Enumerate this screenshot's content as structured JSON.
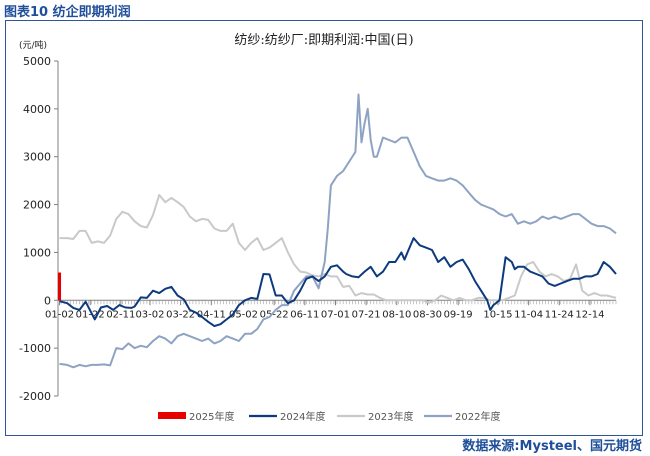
{
  "figure_label": "图表10 纺企即期利润",
  "source": "数据来源:Mysteel、国元期货",
  "colors": {
    "frame": "#2f5597",
    "header_text": "#1f4e9a",
    "s2025": "#e60000",
    "s2024": "#0d3a7e",
    "s2023": "#c9c9c9",
    "s2022": "#8ea3c3",
    "axis": "#808080",
    "text": "#222222"
  },
  "chart_data": {
    "type": "line",
    "title": "纺纱:纺纱厂:即期利润:中国(日)",
    "unit": "(元/吨)",
    "ylim": [
      -2000,
      5000
    ],
    "yticks": [
      -2000,
      -1000,
      0,
      1000,
      2000,
      3000,
      4000,
      5000
    ],
    "xlim": [
      0,
      364
    ],
    "x_ticks": [
      {
        "label": "01-02",
        "day": 1
      },
      {
        "label": "01-22",
        "day": 21
      },
      {
        "label": "02-11",
        "day": 41
      },
      {
        "label": "03-02",
        "day": 60
      },
      {
        "label": "03-22",
        "day": 80
      },
      {
        "label": "04-11",
        "day": 100
      },
      {
        "label": "05-02",
        "day": 121
      },
      {
        "label": "05-22",
        "day": 141
      },
      {
        "label": "06-11",
        "day": 161
      },
      {
        "label": "07-01",
        "day": 181
      },
      {
        "label": "07-21",
        "day": 201
      },
      {
        "label": "08-10",
        "day": 221
      },
      {
        "label": "08-30",
        "day": 241
      },
      {
        "label": "09-19",
        "day": 261
      },
      {
        "label": "10-15",
        "day": 287
      },
      {
        "label": "11-04",
        "day": 307
      },
      {
        "label": "11-24",
        "day": 327
      },
      {
        "label": "12-14",
        "day": 347
      }
    ],
    "grid": false,
    "legend_position": "bottom",
    "series": [
      {
        "name": "2025年度",
        "key": "s2025",
        "marker": "rect",
        "x": [
          1,
          1,
          2,
          2
        ],
        "y": [
          0,
          580,
          580,
          0
        ]
      },
      {
        "name": "2024年度",
        "key": "s2024",
        "marker": "line",
        "x": [
          1,
          6,
          10,
          14,
          18,
          24,
          28,
          32,
          36,
          40,
          44,
          48,
          50,
          54,
          58,
          62,
          66,
          70,
          74,
          78,
          82,
          86,
          90,
          94,
          98,
          102,
          106,
          110,
          114,
          118,
          122,
          126,
          130,
          134,
          138,
          142,
          146,
          150,
          154,
          158,
          162,
          166,
          170,
          174,
          178,
          182,
          186,
          188,
          192,
          196,
          200,
          204,
          208,
          212,
          216,
          220,
          224,
          226,
          228,
          232,
          236,
          240,
          244,
          248,
          252,
          256,
          260,
          264,
          268,
          272,
          276,
          280,
          282,
          284,
          288,
          292,
          296,
          298,
          300,
          304,
          308,
          312,
          316,
          320,
          324,
          328,
          332,
          336,
          340,
          344,
          348,
          352,
          356,
          360,
          364
        ],
        "y": [
          -20,
          -60,
          -160,
          -200,
          -30,
          -400,
          -150,
          -120,
          -200,
          -100,
          -150,
          -160,
          -130,
          60,
          50,
          200,
          150,
          240,
          280,
          100,
          20,
          -200,
          -260,
          -350,
          -450,
          -540,
          -500,
          -400,
          -300,
          -100,
          0,
          50,
          30,
          550,
          540,
          100,
          100,
          -60,
          0,
          200,
          450,
          500,
          400,
          500,
          700,
          730,
          600,
          550,
          500,
          480,
          600,
          700,
          500,
          600,
          800,
          800,
          1000,
          850,
          1000,
          1300,
          1150,
          1100,
          1050,
          800,
          900,
          700,
          800,
          850,
          650,
          400,
          200,
          0,
          -200,
          -100,
          0,
          900,
          800,
          650,
          700,
          700,
          600,
          550,
          500,
          350,
          300,
          350,
          400,
          450,
          450,
          500,
          500,
          550,
          800,
          700,
          550
        ]
      },
      {
        "name": "2023年度",
        "key": "s2023",
        "marker": "line",
        "x": [
          1,
          6,
          10,
          14,
          18,
          22,
          26,
          30,
          34,
          38,
          42,
          46,
          50,
          54,
          58,
          62,
          66,
          70,
          74,
          78,
          82,
          86,
          90,
          94,
          98,
          102,
          106,
          110,
          114,
          118,
          122,
          126,
          130,
          134,
          138,
          142,
          146,
          150,
          154,
          158,
          162,
          166,
          170,
          174,
          178,
          182,
          186,
          190,
          194,
          198,
          202,
          206,
          210,
          214,
          218,
          222,
          226,
          230,
          234,
          238,
          242,
          246,
          250,
          254,
          258,
          262,
          266,
          270,
          274,
          278,
          282,
          286,
          290,
          294,
          298,
          302,
          306,
          310,
          314,
          318,
          322,
          326,
          330,
          334,
          338,
          342,
          346,
          350,
          354,
          358,
          364
        ],
        "y": [
          1300,
          1300,
          1280,
          1450,
          1450,
          1200,
          1230,
          1200,
          1350,
          1700,
          1850,
          1800,
          1650,
          1550,
          1520,
          1780,
          2200,
          2050,
          2140,
          2050,
          1950,
          1750,
          1650,
          1700,
          1680,
          1500,
          1450,
          1450,
          1600,
          1200,
          1050,
          1200,
          1300,
          1050,
          1100,
          1200,
          1300,
          1000,
          750,
          600,
          580,
          520,
          500,
          550,
          500,
          500,
          280,
          300,
          100,
          150,
          120,
          120,
          50,
          0,
          0,
          0,
          0,
          0,
          0,
          0,
          -50,
          0,
          100,
          50,
          0,
          50,
          0,
          0,
          50,
          50,
          0,
          0,
          0,
          50,
          100,
          500,
          750,
          800,
          600,
          500,
          550,
          500,
          400,
          450,
          750,
          200,
          100,
          150,
          100,
          100,
          50
        ]
      },
      {
        "name": "2022年度",
        "key": "s2022",
        "marker": "line",
        "x": [
          1,
          6,
          10,
          14,
          18,
          22,
          26,
          30,
          34,
          38,
          42,
          46,
          50,
          54,
          58,
          62,
          66,
          70,
          74,
          78,
          82,
          86,
          90,
          94,
          98,
          102,
          106,
          110,
          114,
          118,
          122,
          126,
          130,
          134,
          138,
          142,
          146,
          150,
          154,
          158,
          162,
          166,
          170,
          174,
          176,
          178,
          182,
          186,
          190,
          194,
          196,
          198,
          200,
          202,
          204,
          206,
          208,
          212,
          216,
          220,
          224,
          228,
          232,
          236,
          240,
          244,
          248,
          252,
          256,
          260,
          264,
          268,
          272,
          276,
          280,
          284,
          288,
          292,
          296,
          300,
          304,
          308,
          312,
          316,
          320,
          324,
          328,
          332,
          336,
          340,
          344,
          348,
          352,
          356,
          360,
          364
        ],
        "y": [
          -1330,
          -1350,
          -1400,
          -1350,
          -1380,
          -1350,
          -1350,
          -1340,
          -1360,
          -1000,
          -1020,
          -900,
          -1000,
          -950,
          -980,
          -850,
          -750,
          -800,
          -900,
          -750,
          -700,
          -750,
          -800,
          -850,
          -800,
          -900,
          -850,
          -750,
          -800,
          -850,
          -700,
          -700,
          -600,
          -400,
          -350,
          -200,
          -100,
          -100,
          200,
          350,
          500,
          500,
          250,
          800,
          1500,
          2400,
          2600,
          2700,
          2900,
          3100,
          4300,
          3300,
          3700,
          4000,
          3350,
          3000,
          3000,
          3400,
          3350,
          3300,
          3400,
          3400,
          3100,
          2800,
          2600,
          2550,
          2500,
          2500,
          2550,
          2500,
          2400,
          2250,
          2100,
          2000,
          1950,
          1900,
          1800,
          1750,
          1800,
          1600,
          1650,
          1600,
          1650,
          1750,
          1700,
          1750,
          1700,
          1750,
          1800,
          1800,
          1700,
          1600,
          1550,
          1550,
          1500,
          1400
        ]
      }
    ]
  }
}
